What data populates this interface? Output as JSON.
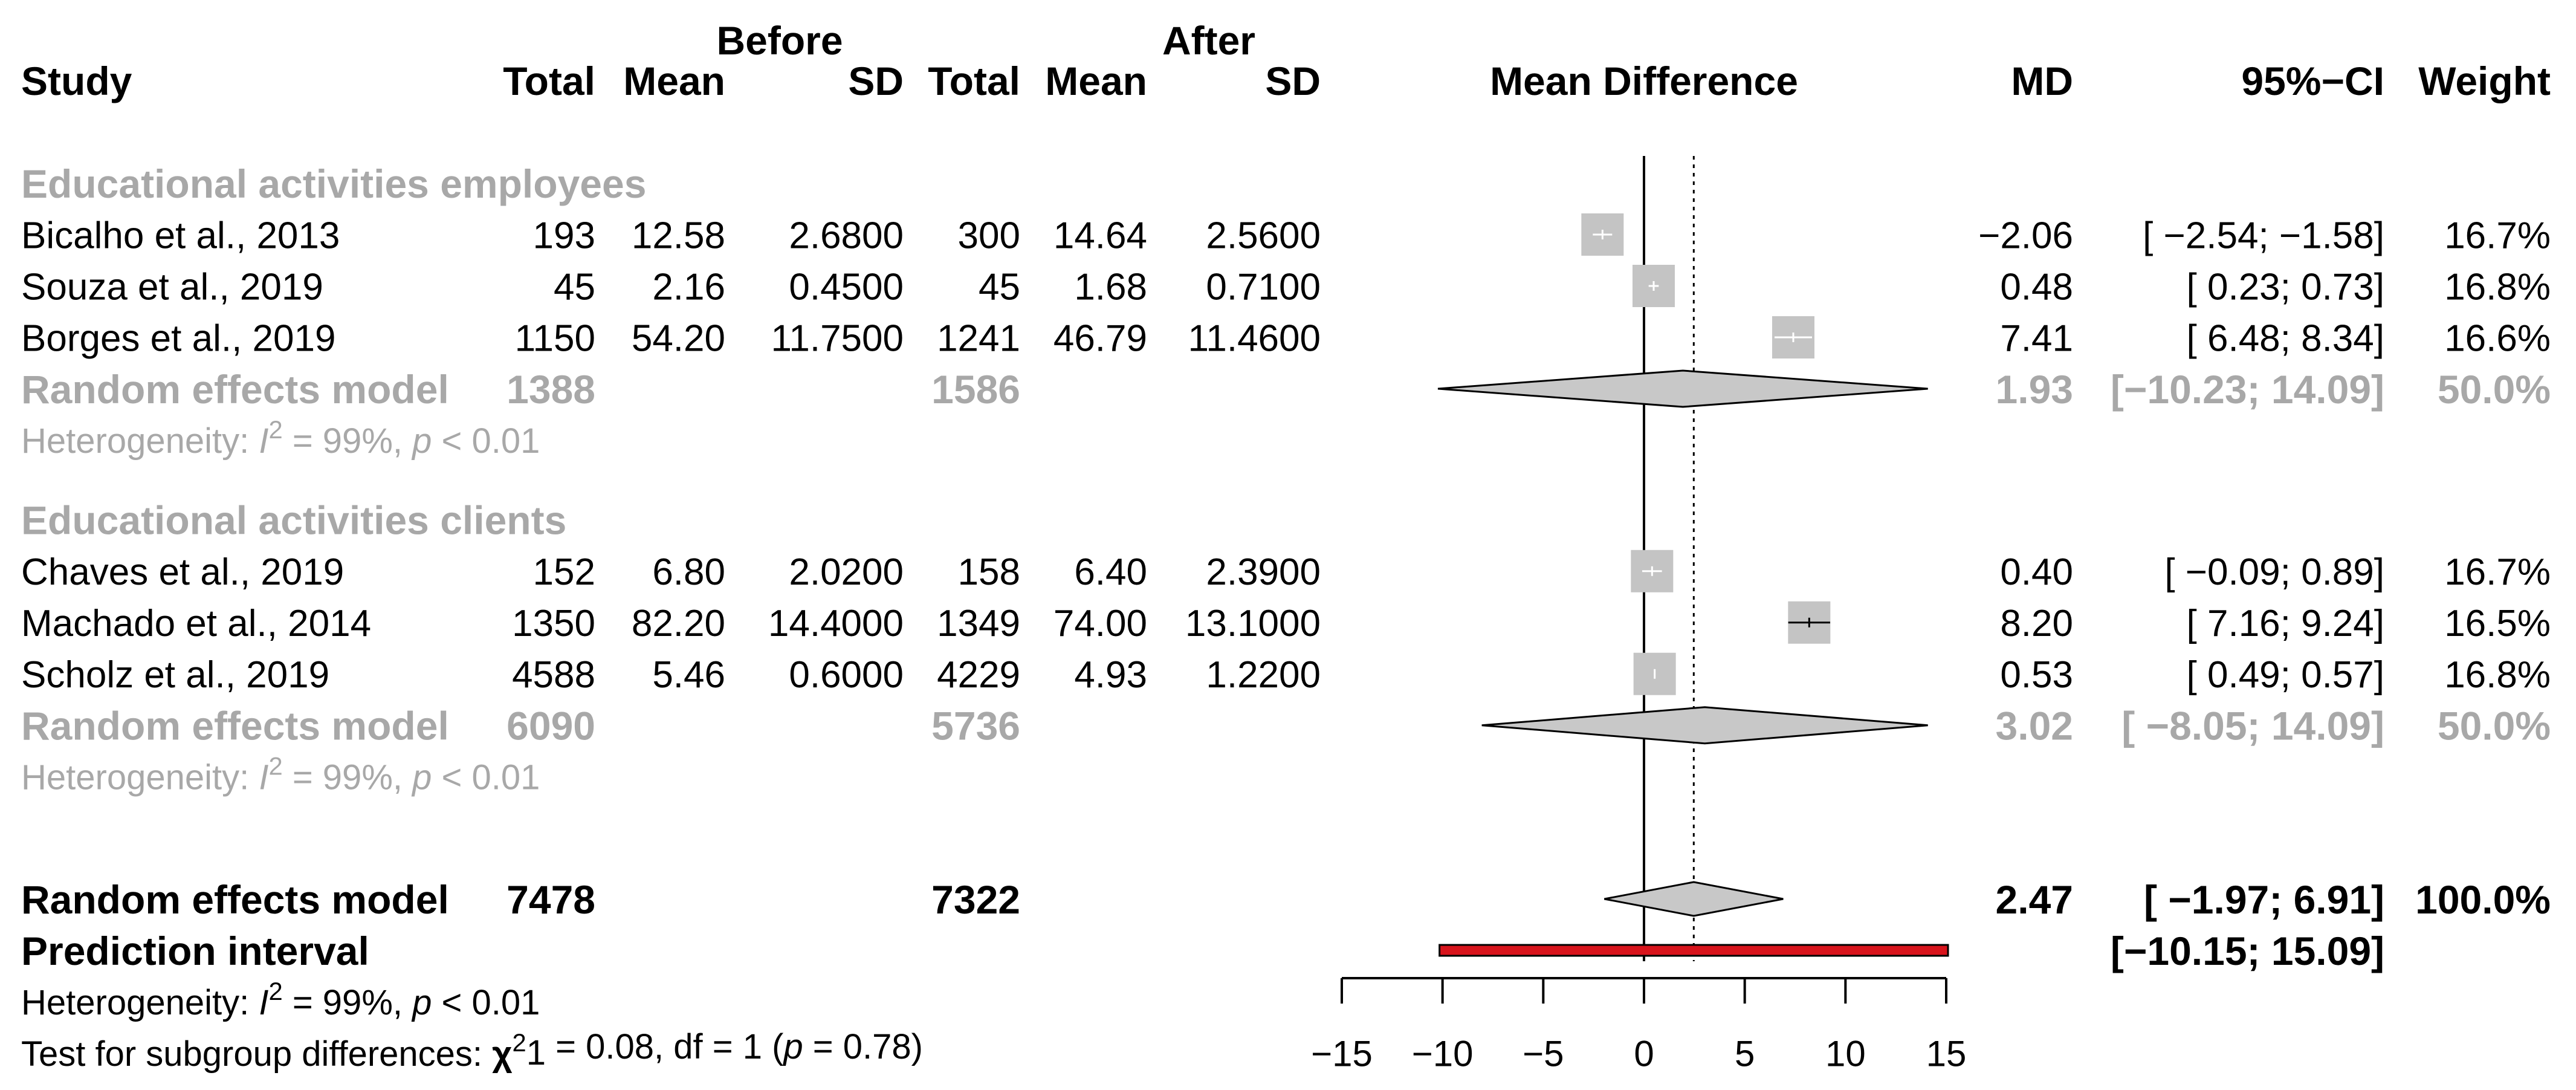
{
  "chart_data": {
    "type": "forest",
    "measure": "MD",
    "xlim": [
      -15,
      15
    ],
    "x_ticks": [
      -15,
      -10,
      -5,
      0,
      5,
      10,
      15
    ],
    "axis_label": "Mean Difference",
    "overall_effect": 2.47,
    "headers": {
      "group_before": "Before",
      "group_after": "After",
      "study": "Study",
      "total": "Total",
      "mean": "Mean",
      "sd": "SD",
      "total2": "Total",
      "mean2": "Mean",
      "sd2": "SD",
      "plot": "Mean Difference",
      "md": "MD",
      "ci": "95%−CI",
      "weight": "Weight"
    },
    "subgroups": [
      {
        "name": "Educational activities employees",
        "studies": [
          {
            "study": "Bicalho et al., 2013",
            "n1": "193",
            "mean1": "12.58",
            "sd1": "2.6800",
            "n2": "300",
            "mean2": "14.64",
            "sd2": "2.5600",
            "md": -2.06,
            "lo": -2.54,
            "hi": -1.58,
            "md_text": "−2.06",
            "ci_text": "[ −2.54; −1.58]",
            "weight_text": "16.7%"
          },
          {
            "study": "Souza et al., 2019",
            "n1": "45",
            "mean1": "2.16",
            "sd1": "0.4500",
            "n2": "45",
            "mean2": "1.68",
            "sd2": "0.7100",
            "md": 0.48,
            "lo": 0.23,
            "hi": 0.73,
            "md_text": "0.48",
            "ci_text": "[ 0.23; 0.73]",
            "weight_text": "16.8%"
          },
          {
            "study": "Borges et al., 2019",
            "n1": "1150",
            "mean1": "54.20",
            "sd1": "11.7500",
            "n2": "1241",
            "mean2": "46.79",
            "sd2": "11.4600",
            "md": 7.41,
            "lo": 6.48,
            "hi": 8.34,
            "md_text": "7.41",
            "ci_text": "[ 6.48; 8.34]",
            "weight_text": "16.6%"
          }
        ],
        "model": {
          "label": "Random effects model",
          "n1": "1388",
          "n2": "1586",
          "md": 1.93,
          "lo": -10.23,
          "hi": 14.09,
          "md_text": "1.93",
          "ci_text": "[−10.23; 14.09]",
          "weight_text": "50.0%"
        },
        "heterogeneity": {
          "prefix": "Heterogeneity: ",
          "i": "I",
          "sup": "2",
          "mid": " = 99%, ",
          "p": "p",
          "tail": " < 0.01"
        }
      },
      {
        "name": "Educational activities clients",
        "studies": [
          {
            "study": "Chaves et al., 2019",
            "n1": "152",
            "mean1": "6.80",
            "sd1": "2.0200",
            "n2": "158",
            "mean2": "6.40",
            "sd2": "2.3900",
            "md": 0.4,
            "lo": -0.09,
            "hi": 0.89,
            "md_text": "0.40",
            "ci_text": "[ −0.09; 0.89]",
            "weight_text": "16.7%"
          },
          {
            "study": "Machado et al., 2014",
            "n1": "1350",
            "mean1": "82.20",
            "sd1": "14.4000",
            "n2": "1349",
            "mean2": "74.00",
            "sd2": "13.1000",
            "md": 8.2,
            "lo": 7.16,
            "hi": 9.24,
            "md_text": "8.20",
            "ci_text": "[ 7.16; 9.24]",
            "weight_text": "16.5%"
          },
          {
            "study": "Scholz et al., 2019",
            "n1": "4588",
            "mean1": "5.46",
            "sd1": "0.6000",
            "n2": "4229",
            "mean2": "4.93",
            "sd2": "1.2200",
            "md": 0.53,
            "lo": 0.49,
            "hi": 0.57,
            "md_text": "0.53",
            "ci_text": "[ 0.49; 0.57]",
            "weight_text": "16.8%"
          }
        ],
        "model": {
          "label": "Random effects model",
          "n1": "6090",
          "n2": "5736",
          "md": 3.02,
          "lo": -8.05,
          "hi": 14.09,
          "md_text": "3.02",
          "ci_text": "[ −8.05; 14.09]",
          "weight_text": "50.0%"
        },
        "heterogeneity": {
          "prefix": "Heterogeneity: ",
          "i": "I",
          "sup": "2",
          "mid": " = 99%, ",
          "p": "p",
          "tail": " < 0.01"
        }
      }
    ],
    "overall": {
      "label": "Random effects model",
      "n1": "7478",
      "n2": "7322",
      "md": 2.47,
      "lo": -1.97,
      "hi": 6.91,
      "md_text": "2.47",
      "ci_text": "[ −1.97; 6.91]",
      "weight_text": "100.0%"
    },
    "prediction_interval": {
      "label": "Prediction interval",
      "lo": -10.15,
      "hi": 15.09,
      "ci_text": "[−10.15; 15.09]"
    },
    "overall_heterogeneity": {
      "prefix": "Heterogeneity: ",
      "i": "I",
      "sup": "2",
      "mid": " = 99%, ",
      "p": "p",
      "tail": " < 0.01"
    },
    "subgroup_test": {
      "prefix": "Test for subgroup differences: ",
      "chi": "χ",
      "sup": "2",
      "sub": "1",
      "mid": " = 0.08, df = 1 (",
      "p": "p",
      "tail": " = 0.78)"
    },
    "colors": {
      "grey_text": "#a8a8a8",
      "square": "#c4c4c4",
      "diamond": "#c8c8c8",
      "prediction": "#d8141c"
    }
  }
}
